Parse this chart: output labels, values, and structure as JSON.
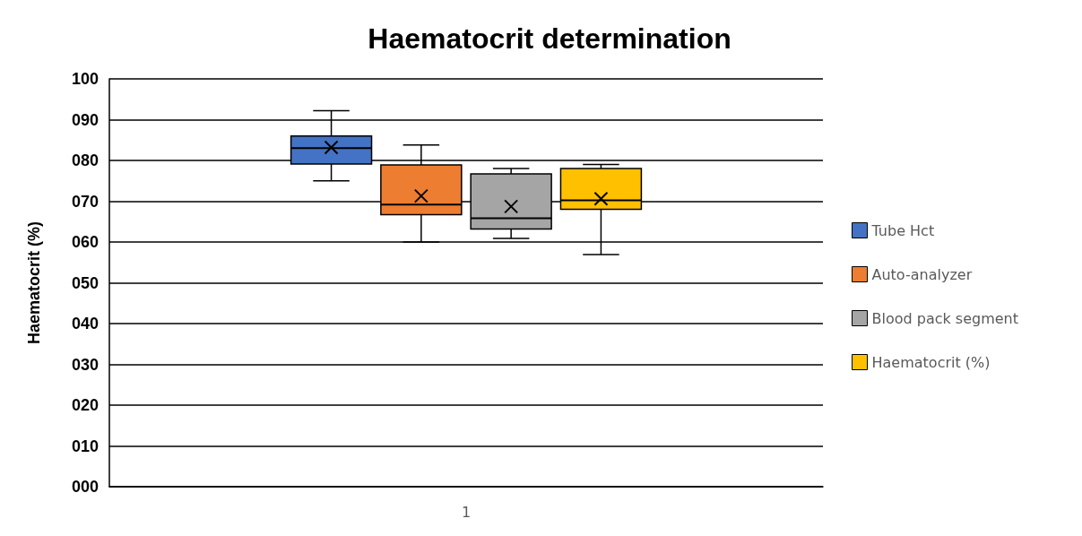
{
  "chart_data": {
    "type": "box",
    "title": "Haematocrit determination",
    "ylabel": "Haematocrit (%)",
    "categories": [
      "1"
    ],
    "series": [
      {
        "name": "Tube Hct",
        "color": "#4472c4",
        "boxes": [
          {
            "low": 75,
            "q1": 79.1,
            "median": 83,
            "q3": 86,
            "high": 92.2,
            "mean": 83.2
          }
        ]
      },
      {
        "name": "Auto-analyzer",
        "color": "#ed7d31",
        "boxes": [
          {
            "low": 60,
            "q1": 66.7,
            "median": 69.2,
            "q3": 78.9,
            "high": 83.8,
            "mean": 71.3
          }
        ]
      },
      {
        "name": "Blood pack segment",
        "color": "#a5a5a5",
        "boxes": [
          {
            "low": 60.9,
            "q1": 63.2,
            "median": 65.8,
            "q3": 76.7,
            "high": 78,
            "mean": 68.7
          }
        ]
      },
      {
        "name": "Haematocrit (%)",
        "color": "#ffc000",
        "boxes": [
          {
            "low": 56.9,
            "q1": 68,
            "median": 70.2,
            "q3": 78,
            "high": 79,
            "mean": 70.6
          }
        ]
      }
    ],
    "ylim": [
      0,
      100
    ],
    "yticks": [
      {
        "value": 0,
        "label": "000"
      },
      {
        "value": 10,
        "label": "010"
      },
      {
        "value": 20,
        "label": "020"
      },
      {
        "value": 30,
        "label": "030"
      },
      {
        "value": 40,
        "label": "040"
      },
      {
        "value": 50,
        "label": "050"
      },
      {
        "value": 60,
        "label": "060"
      },
      {
        "value": 70,
        "label": "070"
      },
      {
        "value": 80,
        "label": "080"
      },
      {
        "value": 90,
        "label": "090"
      },
      {
        "value": 100,
        "label": "100"
      }
    ],
    "grid": "y",
    "legend": "right",
    "marker": "cross"
  }
}
